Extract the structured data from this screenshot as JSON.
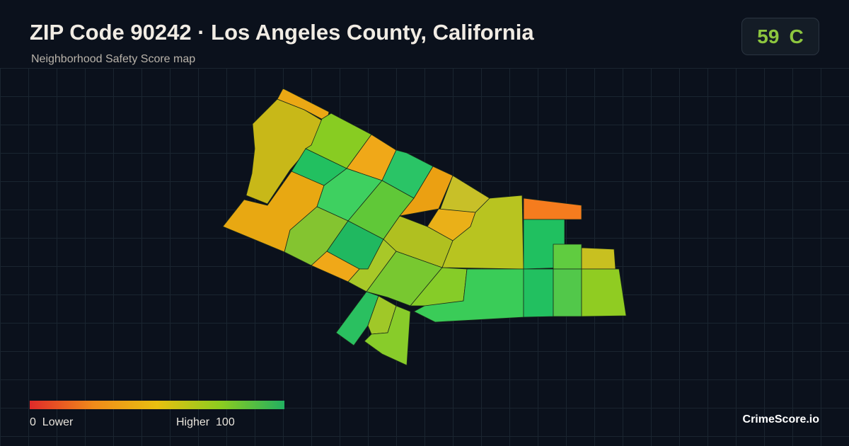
{
  "header": {
    "title": "ZIP Code 90242 · Los Angeles County, California",
    "subtitle": "Neighborhood Safety Score map"
  },
  "score": {
    "value": 59,
    "grade": "C"
  },
  "legend": {
    "min": 0,
    "min_label": "Lower",
    "max_label": "Higher",
    "max": 100
  },
  "brand": "CrimeScore.io"
}
